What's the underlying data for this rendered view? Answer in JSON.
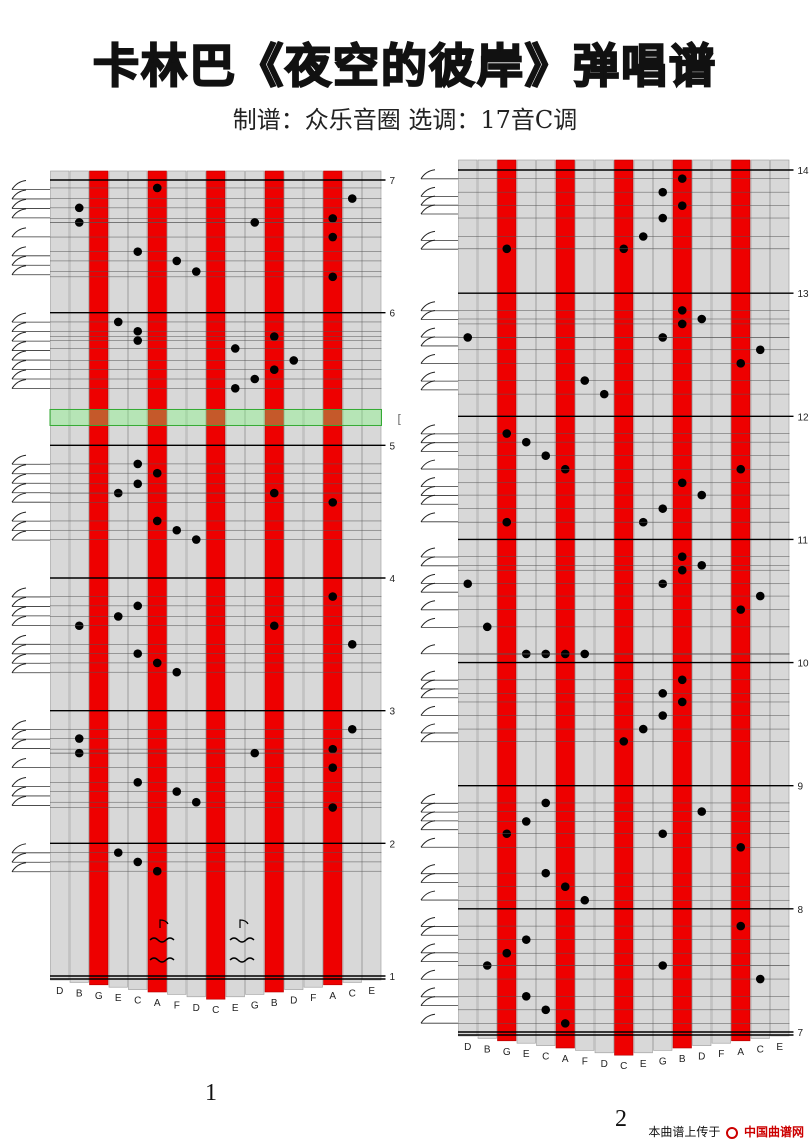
{
  "header": {
    "title": "卡林巴《夜空的彼岸》弹唱谱",
    "subtitle": "制谱：众乐音圈   选调：17音C调"
  },
  "tine_letters": [
    "D",
    "B",
    "G",
    "E",
    "C",
    "A",
    "F",
    "D",
    "C",
    "E",
    "G",
    "B",
    "D",
    "F",
    "A",
    "C",
    "E"
  ],
  "red_tines": [
    2,
    5,
    8,
    11,
    14
  ],
  "page1": {
    "page_label": "1",
    "measures": [
      1,
      2,
      3,
      4,
      5,
      6,
      7
    ],
    "beats_per_measure": 8,
    "notes": [
      [
        6.94,
        5
      ],
      [
        6.86,
        15
      ],
      [
        6.79,
        1
      ],
      [
        6.71,
        14
      ],
      [
        6.68,
        1
      ],
      [
        6.68,
        10
      ],
      [
        6.57,
        14
      ],
      [
        6.46,
        4
      ],
      [
        6.39,
        6
      ],
      [
        6.31,
        7
      ],
      [
        6.27,
        14
      ],
      [
        5.93,
        3
      ],
      [
        5.86,
        4
      ],
      [
        5.82,
        11
      ],
      [
        5.79,
        4
      ],
      [
        5.73,
        9
      ],
      [
        5.64,
        12
      ],
      [
        5.57,
        11
      ],
      [
        5.5,
        10
      ],
      [
        5.43,
        9
      ],
      [
        4.86,
        4
      ],
      [
        4.79,
        5
      ],
      [
        4.71,
        4
      ],
      [
        4.64,
        3
      ],
      [
        4.64,
        11
      ],
      [
        4.57,
        14
      ],
      [
        4.43,
        5
      ],
      [
        4.36,
        6
      ],
      [
        4.29,
        7
      ],
      [
        3.86,
        14
      ],
      [
        3.79,
        4
      ],
      [
        3.71,
        3
      ],
      [
        3.64,
        1
      ],
      [
        3.64,
        11
      ],
      [
        3.5,
        15
      ],
      [
        3.43,
        4
      ],
      [
        3.36,
        5
      ],
      [
        3.29,
        6
      ],
      [
        2.86,
        15
      ],
      [
        2.79,
        1
      ],
      [
        2.71,
        14
      ],
      [
        2.68,
        1
      ],
      [
        2.68,
        10
      ],
      [
        2.57,
        14
      ],
      [
        2.46,
        4
      ],
      [
        2.39,
        6
      ],
      [
        2.31,
        7
      ],
      [
        2.27,
        14
      ],
      [
        1.93,
        3
      ],
      [
        1.86,
        4
      ],
      [
        1.79,
        5
      ]
    ],
    "highlight_row": 5.21
  },
  "page2": {
    "page_label": "2",
    "measures": [
      7,
      8,
      9,
      10,
      11,
      12,
      13,
      14
    ],
    "beats_per_measure": 8,
    "notes": [
      [
        13.93,
        11
      ],
      [
        13.82,
        10
      ],
      [
        13.71,
        11
      ],
      [
        13.61,
        10
      ],
      [
        13.46,
        9
      ],
      [
        13.36,
        8
      ],
      [
        13.36,
        2
      ],
      [
        12.86,
        11
      ],
      [
        12.79,
        12
      ],
      [
        12.75,
        11
      ],
      [
        12.64,
        10
      ],
      [
        12.64,
        0
      ],
      [
        12.54,
        15
      ],
      [
        12.43,
        14
      ],
      [
        12.29,
        6
      ],
      [
        12.18,
        7
      ],
      [
        11.86,
        2
      ],
      [
        11.79,
        3
      ],
      [
        11.68,
        4
      ],
      [
        11.57,
        5
      ],
      [
        11.57,
        14
      ],
      [
        11.46,
        11
      ],
      [
        11.36,
        12
      ],
      [
        11.25,
        10
      ],
      [
        11.14,
        9
      ],
      [
        11.14,
        2
      ],
      [
        10.86,
        11
      ],
      [
        10.79,
        12
      ],
      [
        10.75,
        11
      ],
      [
        10.64,
        10
      ],
      [
        10.64,
        0
      ],
      [
        10.54,
        15
      ],
      [
        10.43,
        14
      ],
      [
        10.29,
        1
      ],
      [
        10.07,
        3
      ],
      [
        10.07,
        4
      ],
      [
        10.07,
        5
      ],
      [
        10.07,
        6
      ],
      [
        9.86,
        11
      ],
      [
        9.75,
        10
      ],
      [
        9.68,
        11
      ],
      [
        9.57,
        10
      ],
      [
        9.46,
        9
      ],
      [
        9.36,
        8
      ],
      [
        8.86,
        4
      ],
      [
        8.79,
        12
      ],
      [
        8.71,
        3
      ],
      [
        8.61,
        2
      ],
      [
        8.61,
        10
      ],
      [
        8.5,
        14
      ],
      [
        8.29,
        4
      ],
      [
        8.18,
        5
      ],
      [
        8.07,
        6
      ],
      [
        7.86,
        14
      ],
      [
        7.75,
        3
      ],
      [
        7.64,
        2
      ],
      [
        7.54,
        1
      ],
      [
        7.54,
        10
      ],
      [
        7.43,
        15
      ],
      [
        7.29,
        3
      ],
      [
        7.18,
        4
      ],
      [
        7.07,
        5
      ]
    ]
  },
  "footer": {
    "upload_text": "本曲谱上传于",
    "brand": "中国曲谱网"
  }
}
